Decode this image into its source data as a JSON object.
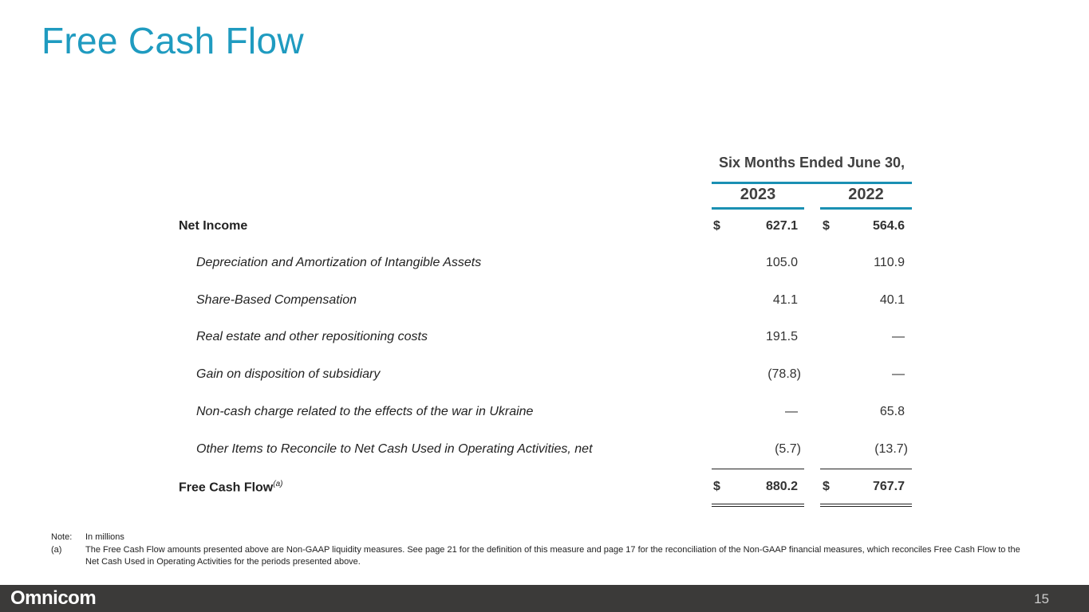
{
  "title": "Free Cash Flow",
  "table": {
    "period_header": "Six Months Ended June 30,",
    "years": [
      "2023",
      "2022"
    ],
    "rows": [
      {
        "label": "Net Income",
        "bold": true,
        "c1": "627.1",
        "c2": "564.6",
        "dollar": "$"
      },
      {
        "label": "Depreciation and Amortization of Intangible Assets",
        "c1": "105.0",
        "c2": "110.9"
      },
      {
        "label": "Share-Based Compensation",
        "c1": "41.1",
        "c2": "40.1"
      },
      {
        "label": "Real estate and other repositioning costs",
        "c1": "191.5",
        "c2": "—"
      },
      {
        "label": "Gain on disposition of subsidiary",
        "c1": "(78.8)",
        "c2": "—"
      },
      {
        "label": "Non-cash charge related to the effects of the war in Ukraine",
        "c1": "—",
        "c2": "65.8"
      },
      {
        "label": "Other Items to Reconcile to Net Cash Used in Operating Activities, net",
        "c1": "(5.7)",
        "c2": "(13.7)"
      },
      {
        "label": "Free Cash Flow",
        "sup": "(a)",
        "bold": true,
        "c1": "880.2",
        "c2": "767.7",
        "dollar": "$"
      }
    ]
  },
  "notes": {
    "note_label": "Note:",
    "note_text": "In millions",
    "a_label": "(a)",
    "a_text": "The Free Cash Flow amounts presented above are Non-GAAP liquidity measures. See page 21 for the definition of this measure and page 17 for the reconciliation of the Non-GAAP financial measures, which reconciles Free Cash Flow to the Net Cash Used in Operating Activities for the periods presented above."
  },
  "footer": {
    "logo": "Omnicom",
    "page": "15"
  },
  "colors": {
    "accent": "#1f9bc0",
    "footer": "#3b3a39"
  }
}
